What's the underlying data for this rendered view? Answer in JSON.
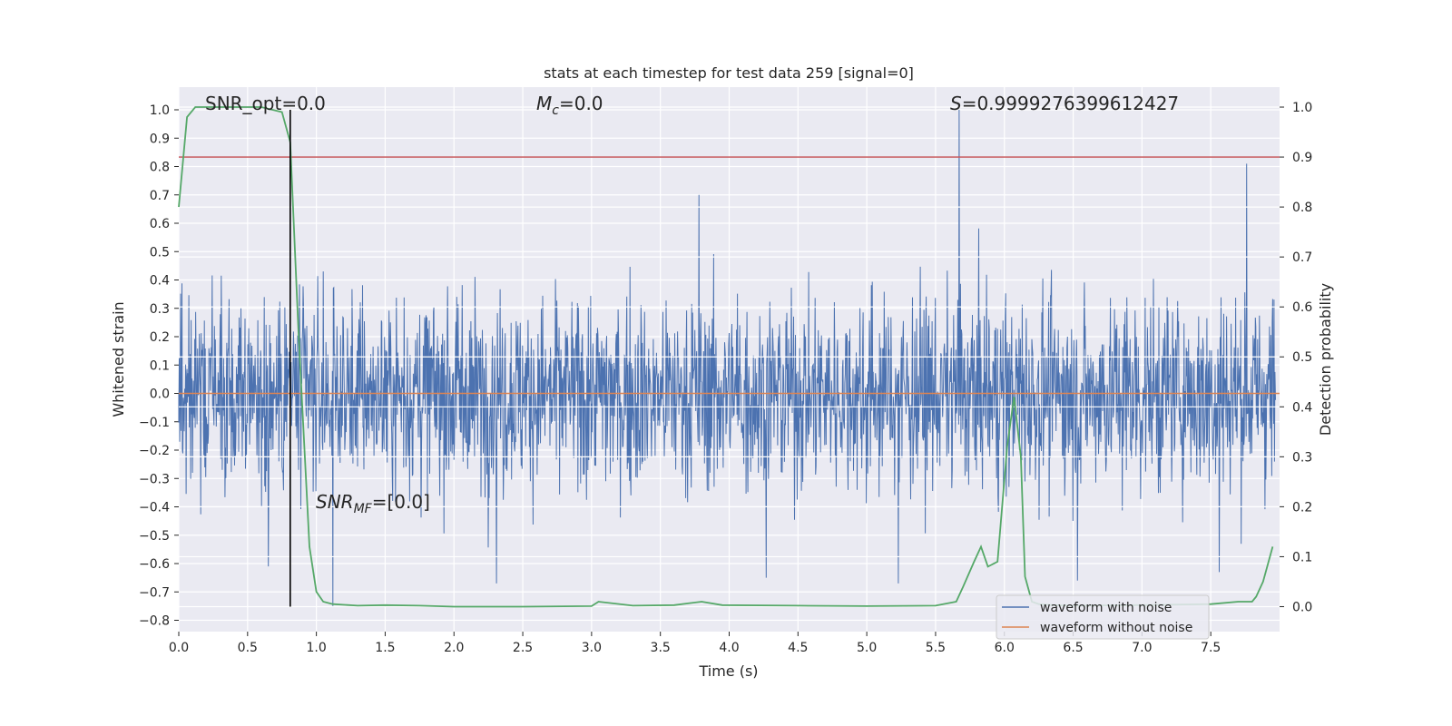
{
  "chart_data": {
    "type": "line",
    "title": "stats at each timestep for test data 259 [signal=0]",
    "xlabel": "Time (s)",
    "ylabel": "Whitened strain",
    "ylabel_right": "Detection probability",
    "xlim": [
      0.0,
      8.0
    ],
    "ylim": [
      -0.84,
      1.08
    ],
    "ylim_right": [
      -0.05,
      1.04
    ],
    "x_ticks": [
      "0.0",
      "0.5",
      "1.0",
      "1.5",
      "2.0",
      "2.5",
      "3.0",
      "3.5",
      "4.0",
      "4.5",
      "5.0",
      "5.5",
      "6.0",
      "6.5",
      "7.0",
      "7.5"
    ],
    "y_ticks": [
      "1.0",
      "0.9",
      "0.8",
      "0.7",
      "0.6",
      "0.5",
      "0.4",
      "0.3",
      "0.2",
      "0.1",
      "0.0",
      "−0.1",
      "−0.2",
      "−0.3",
      "−0.4",
      "−0.5",
      "−0.6",
      "−0.7",
      "−0.8"
    ],
    "y_right_ticks": [
      "1.0",
      "0.9",
      "0.8",
      "0.7",
      "0.6",
      "0.5",
      "0.4",
      "0.3",
      "0.2",
      "0.1",
      "0.0"
    ],
    "grid": true,
    "legend_position": "lower-right",
    "annotations": {
      "snr_opt": "SNR_opt=0.0",
      "mc_sym": "M",
      "mc_sub": "c",
      "mc_val": "=0.0",
      "s_sym": "S",
      "s_val": "=0.9999276399612427",
      "snr_mf_sym": "SNR",
      "snr_mf_sub": "MF",
      "snr_mf_val": "=[0.0]"
    },
    "threshold": {
      "value": 0.9,
      "axis": "right",
      "color": "#c44e52"
    },
    "marker_line": {
      "x": 0.81,
      "color": "#000000"
    },
    "series": [
      {
        "name": "waveform with noise",
        "color": "#4c72b0",
        "style": "dense noise, envelope approx ±0.45, extreme values: 1.0 at x=5.67, 0.81 at x=7.76, 0.70 at x=3.78, -0.75 at x=1.12, -0.67 at x=2.31"
      },
      {
        "name": "waveform without noise",
        "color": "#dd8452",
        "x": [
          0.0,
          8.0
        ],
        "y": [
          0.0,
          0.0
        ]
      },
      {
        "color": "#55a868",
        "axis": "right",
        "x": [
          0.0,
          0.06,
          0.12,
          0.2,
          0.4,
          0.6,
          0.75,
          0.81,
          0.87,
          0.95,
          1.0,
          1.05,
          1.12,
          1.3,
          1.5,
          1.75,
          2.0,
          2.5,
          3.0,
          3.05,
          3.3,
          3.6,
          3.8,
          3.95,
          4.5,
          5.0,
          5.5,
          5.65,
          5.7,
          5.78,
          5.83,
          5.88,
          5.95,
          6.02,
          6.07,
          6.12,
          6.15,
          6.2,
          6.25,
          6.35,
          6.5,
          7.0,
          7.5,
          7.7,
          7.8,
          7.83,
          7.88,
          7.95
        ],
        "y": [
          0.8,
          0.98,
          1.0,
          1.0,
          1.0,
          1.0,
          0.99,
          0.93,
          0.55,
          0.12,
          0.03,
          0.01,
          0.005,
          0.002,
          0.003,
          0.002,
          0.0,
          0.0,
          0.001,
          0.01,
          0.002,
          0.003,
          0.01,
          0.003,
          0.002,
          0.001,
          0.002,
          0.01,
          0.04,
          0.09,
          0.12,
          0.08,
          0.09,
          0.32,
          0.42,
          0.3,
          0.06,
          0.01,
          0.005,
          0.003,
          0.002,
          0.003,
          0.005,
          0.01,
          0.01,
          0.02,
          0.05,
          0.12
        ]
      }
    ]
  }
}
